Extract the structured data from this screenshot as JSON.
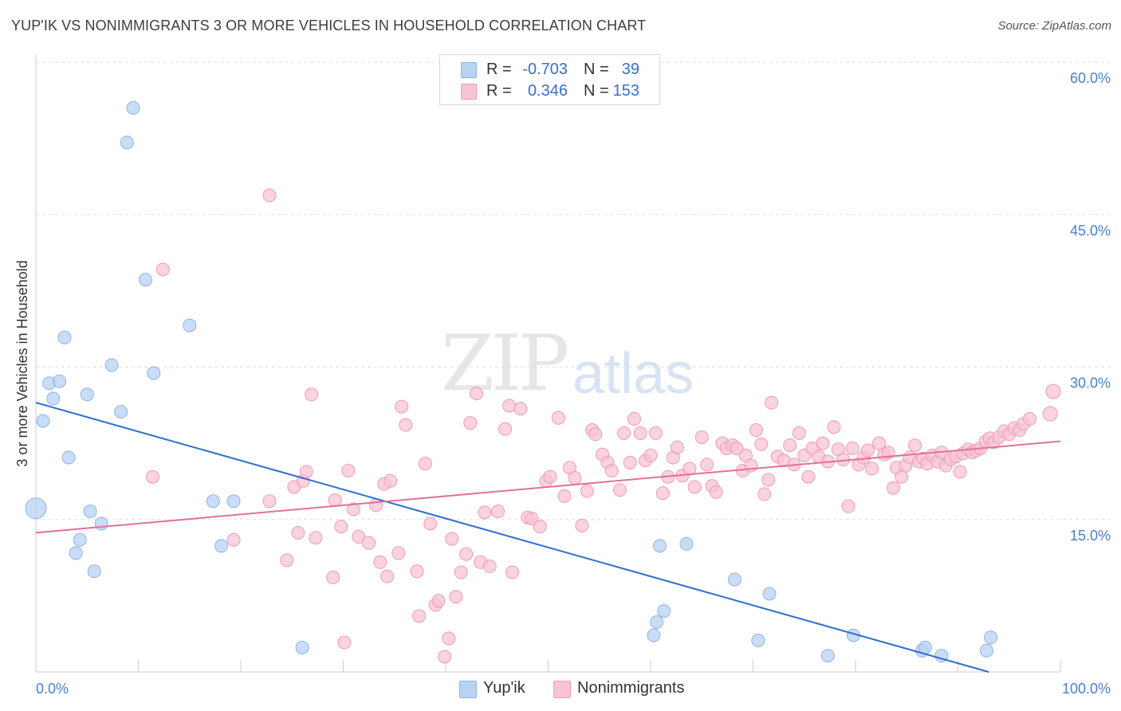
{
  "title": "YUP'IK VS NONIMMIGRANTS 3 OR MORE VEHICLES IN HOUSEHOLD CORRELATION CHART",
  "source": "Source: ZipAtlas.com",
  "watermark": {
    "zip": "ZIP",
    "atlas": "atlas"
  },
  "legend_stats": [
    {
      "r_label": "R =",
      "r_value": "-0.703",
      "n_label": "N =",
      "n_value": "39",
      "color": "#a9c8f0"
    },
    {
      "r_label": "R =",
      "r_value": "0.346",
      "n_label": "N =",
      "n_value": "153",
      "color": "#f5b8cb"
    }
  ],
  "colors": {
    "yupik_fill": "#b8d2f3",
    "yupik_stroke": "#8db3e6",
    "yupik_line": "#2f6fd0",
    "nonimm_fill": "#f8c4d3",
    "nonimm_stroke": "#ee9ab5",
    "nonimm_line": "#e2709a",
    "tick_text": "#4a7fd0",
    "grid": "#dddddd"
  },
  "chart_data": {
    "type": "scatter",
    "title": "YUP'IK VS NONIMMIGRANTS 3 OR MORE VEHICLES IN HOUSEHOLD CORRELATION CHART",
    "xlabel": "",
    "ylabel": "3 or more Vehicles in Household",
    "xlim": [
      0,
      100
    ],
    "ylim": [
      0,
      60
    ],
    "x_tick_labels": [
      "0.0%",
      "100.0%"
    ],
    "y_ticks": [
      15,
      30,
      45,
      60
    ],
    "y_tick_labels": [
      "15.0%",
      "30.0%",
      "45.0%",
      "60.0%"
    ],
    "grid": true,
    "legend_position": "bottom",
    "series": [
      {
        "name": "Yup'ik",
        "r": -0.703,
        "n": 39,
        "trend": [
          [
            0,
            26.5
          ],
          [
            93,
            0
          ]
        ],
        "points": [
          [
            0.0,
            16.1,
            26
          ],
          [
            0.7,
            24.7,
            16
          ],
          [
            1.3,
            28.4,
            16
          ],
          [
            1.7,
            26.9,
            16
          ],
          [
            2.3,
            28.6,
            16
          ],
          [
            2.8,
            32.9,
            16
          ],
          [
            3.2,
            21.1,
            16
          ],
          [
            3.9,
            11.7,
            16
          ],
          [
            4.3,
            13.0,
            16
          ],
          [
            5.0,
            27.3,
            16
          ],
          [
            5.3,
            15.8,
            16
          ],
          [
            5.7,
            9.9,
            16
          ],
          [
            6.4,
            14.6,
            16
          ],
          [
            7.4,
            30.2,
            16
          ],
          [
            8.3,
            25.6,
            16
          ],
          [
            8.9,
            52.1,
            16
          ],
          [
            9.5,
            55.5,
            16
          ],
          [
            10.7,
            38.6,
            16
          ],
          [
            11.5,
            29.4,
            16
          ],
          [
            15.0,
            34.1,
            16
          ],
          [
            17.3,
            16.8,
            16
          ],
          [
            18.1,
            12.4,
            16
          ],
          [
            19.3,
            16.8,
            16
          ],
          [
            26.0,
            2.4,
            16
          ],
          [
            60.3,
            3.6,
            16
          ],
          [
            60.6,
            4.9,
            16
          ],
          [
            60.9,
            12.4,
            16
          ],
          [
            61.3,
            6.0,
            16
          ],
          [
            63.5,
            12.6,
            16
          ],
          [
            68.2,
            9.1,
            16
          ],
          [
            70.5,
            3.1,
            16
          ],
          [
            71.6,
            7.7,
            16
          ],
          [
            77.3,
            1.6,
            16
          ],
          [
            79.8,
            3.6,
            16
          ],
          [
            86.5,
            2.1,
            16
          ],
          [
            86.8,
            2.4,
            16
          ],
          [
            88.4,
            1.6,
            16
          ],
          [
            92.8,
            2.1,
            16
          ],
          [
            93.2,
            3.4,
            16
          ]
        ]
      },
      {
        "name": "Nonimmigrants",
        "r": 0.346,
        "n": 153,
        "trend": [
          [
            0,
            13.7
          ],
          [
            100,
            22.7
          ]
        ],
        "points": [
          [
            11.4,
            19.2,
            16
          ],
          [
            12.4,
            39.6,
            16
          ],
          [
            22.8,
            16.8,
            16
          ],
          [
            19.3,
            13.0,
            16
          ],
          [
            22.8,
            46.9,
            16
          ],
          [
            24.5,
            11.0,
            16
          ],
          [
            25.2,
            18.2,
            16
          ],
          [
            25.6,
            13.7,
            16
          ],
          [
            26.1,
            18.8,
            16
          ],
          [
            26.4,
            19.7,
            16
          ],
          [
            26.9,
            27.3,
            16
          ],
          [
            27.3,
            13.2,
            16
          ],
          [
            29.0,
            9.3,
            16
          ],
          [
            29.2,
            16.9,
            16
          ],
          [
            29.8,
            14.3,
            16
          ],
          [
            30.1,
            2.9,
            16
          ],
          [
            30.5,
            19.8,
            16
          ],
          [
            31.0,
            16.0,
            16
          ],
          [
            31.5,
            13.3,
            16
          ],
          [
            32.5,
            12.7,
            16
          ],
          [
            33.2,
            16.4,
            16
          ],
          [
            33.6,
            10.8,
            16
          ],
          [
            34.0,
            18.5,
            16
          ],
          [
            34.3,
            9.4,
            16
          ],
          [
            34.6,
            18.8,
            16
          ],
          [
            35.4,
            11.7,
            16
          ],
          [
            35.7,
            26.1,
            16
          ],
          [
            36.1,
            24.3,
            16
          ],
          [
            37.2,
            9.9,
            16
          ],
          [
            37.4,
            5.5,
            16
          ],
          [
            38.0,
            20.5,
            16
          ],
          [
            38.5,
            14.6,
            16
          ],
          [
            39.0,
            6.6,
            16
          ],
          [
            39.3,
            7.0,
            16
          ],
          [
            39.9,
            1.5,
            16
          ],
          [
            40.3,
            3.3,
            16
          ],
          [
            40.6,
            13.1,
            16
          ],
          [
            41.0,
            7.4,
            16
          ],
          [
            41.5,
            9.8,
            16
          ],
          [
            42.0,
            11.6,
            16
          ],
          [
            42.4,
            24.5,
            16
          ],
          [
            43.0,
            27.4,
            16
          ],
          [
            43.4,
            10.8,
            16
          ],
          [
            43.8,
            15.7,
            16
          ],
          [
            44.3,
            10.4,
            16
          ],
          [
            45.1,
            15.8,
            16
          ],
          [
            45.8,
            23.9,
            16
          ],
          [
            46.2,
            26.2,
            16
          ],
          [
            46.5,
            9.8,
            16
          ],
          [
            47.3,
            25.9,
            16
          ],
          [
            48.0,
            15.2,
            16
          ],
          [
            48.4,
            15.1,
            16
          ],
          [
            49.2,
            14.3,
            16
          ],
          [
            49.8,
            18.8,
            16
          ],
          [
            50.2,
            19.2,
            16
          ],
          [
            51.0,
            25.0,
            16
          ],
          [
            51.6,
            17.3,
            16
          ],
          [
            52.1,
            20.1,
            16
          ],
          [
            52.6,
            19.1,
            16
          ],
          [
            53.3,
            14.4,
            16
          ],
          [
            53.8,
            17.8,
            16
          ],
          [
            54.3,
            23.8,
            16
          ],
          [
            54.6,
            23.4,
            16
          ],
          [
            55.3,
            21.4,
            16
          ],
          [
            55.8,
            20.6,
            16
          ],
          [
            56.2,
            19.8,
            16
          ],
          [
            57.0,
            17.9,
            16
          ],
          [
            57.4,
            23.5,
            16
          ],
          [
            58.0,
            20.6,
            16
          ],
          [
            58.4,
            24.9,
            16
          ],
          [
            59.0,
            23.5,
            16
          ],
          [
            59.5,
            20.8,
            16
          ],
          [
            60.0,
            21.3,
            16
          ],
          [
            60.5,
            23.5,
            16
          ],
          [
            61.2,
            17.6,
            16
          ],
          [
            61.7,
            19.2,
            16
          ],
          [
            62.2,
            21.1,
            16
          ],
          [
            62.6,
            22.1,
            16
          ],
          [
            63.1,
            19.3,
            16
          ],
          [
            63.8,
            20.0,
            16
          ],
          [
            64.3,
            18.2,
            16
          ],
          [
            65.0,
            23.1,
            16
          ],
          [
            65.5,
            20.4,
            16
          ],
          [
            66.0,
            18.3,
            16
          ],
          [
            66.4,
            17.7,
            16
          ],
          [
            67.0,
            22.5,
            16
          ],
          [
            67.4,
            22.0,
            16
          ],
          [
            68.0,
            22.3,
            16
          ],
          [
            68.4,
            22.0,
            16
          ],
          [
            69.0,
            19.8,
            16
          ],
          [
            69.3,
            21.3,
            16
          ],
          [
            69.8,
            20.3,
            16
          ],
          [
            70.3,
            23.8,
            16
          ],
          [
            70.8,
            22.4,
            16
          ],
          [
            71.1,
            17.5,
            16
          ],
          [
            71.5,
            18.9,
            16
          ],
          [
            71.8,
            26.5,
            16
          ],
          [
            72.4,
            21.2,
            16
          ],
          [
            73.0,
            20.8,
            16
          ],
          [
            73.6,
            22.3,
            16
          ],
          [
            74.0,
            20.4,
            16
          ],
          [
            74.5,
            23.5,
            16
          ],
          [
            75.0,
            21.3,
            16
          ],
          [
            75.4,
            19.2,
            16
          ],
          [
            75.8,
            22.0,
            16
          ],
          [
            76.4,
            21.2,
            16
          ],
          [
            76.8,
            22.5,
            16
          ],
          [
            77.3,
            20.7,
            16
          ],
          [
            77.9,
            24.1,
            16
          ],
          [
            78.3,
            21.9,
            16
          ],
          [
            78.8,
            20.9,
            16
          ],
          [
            79.3,
            16.3,
            16
          ],
          [
            79.7,
            22.0,
            16
          ],
          [
            80.3,
            20.4,
            16
          ],
          [
            80.8,
            21.1,
            16
          ],
          [
            81.2,
            21.8,
            16
          ],
          [
            81.6,
            20.0,
            16
          ],
          [
            82.3,
            22.5,
            16
          ],
          [
            82.8,
            21.4,
            16
          ],
          [
            83.2,
            21.6,
            16
          ],
          [
            83.7,
            18.1,
            16
          ],
          [
            84.0,
            20.1,
            16
          ],
          [
            84.5,
            19.2,
            16
          ],
          [
            84.9,
            20.3,
            16
          ],
          [
            85.3,
            21.1,
            16
          ],
          [
            85.8,
            22.3,
            16
          ],
          [
            86.2,
            20.7,
            16
          ],
          [
            86.6,
            21.0,
            16
          ],
          [
            87.0,
            20.5,
            16
          ],
          [
            87.5,
            21.3,
            16
          ],
          [
            88.0,
            20.7,
            16
          ],
          [
            88.4,
            21.6,
            16
          ],
          [
            88.8,
            20.3,
            16
          ],
          [
            89.3,
            20.9,
            16
          ],
          [
            89.8,
            21.2,
            16
          ],
          [
            90.2,
            19.7,
            16
          ],
          [
            90.5,
            21.5,
            16
          ],
          [
            91.0,
            21.9,
            16
          ],
          [
            91.4,
            21.6,
            16
          ],
          [
            91.8,
            21.8,
            16
          ],
          [
            92.2,
            22.0,
            16
          ],
          [
            92.7,
            22.7,
            16
          ],
          [
            93.1,
            23.0,
            16
          ],
          [
            93.5,
            22.6,
            16
          ],
          [
            94.0,
            23.1,
            16
          ],
          [
            94.5,
            23.7,
            16
          ],
          [
            95.0,
            23.4,
            16
          ],
          [
            95.5,
            24.0,
            16
          ],
          [
            96.0,
            23.8,
            16
          ],
          [
            96.4,
            24.4,
            16
          ],
          [
            97.0,
            24.9,
            16
          ],
          [
            99.0,
            25.4,
            18
          ],
          [
            99.3,
            27.6,
            18
          ]
        ]
      }
    ]
  },
  "bottom_legend": [
    {
      "label": "Yup'ik",
      "color": "#b8d2f3",
      "stroke": "#8db3e6"
    },
    {
      "label": "Nonimmigrants",
      "color": "#f8c4d3",
      "stroke": "#ee9ab5"
    }
  ]
}
